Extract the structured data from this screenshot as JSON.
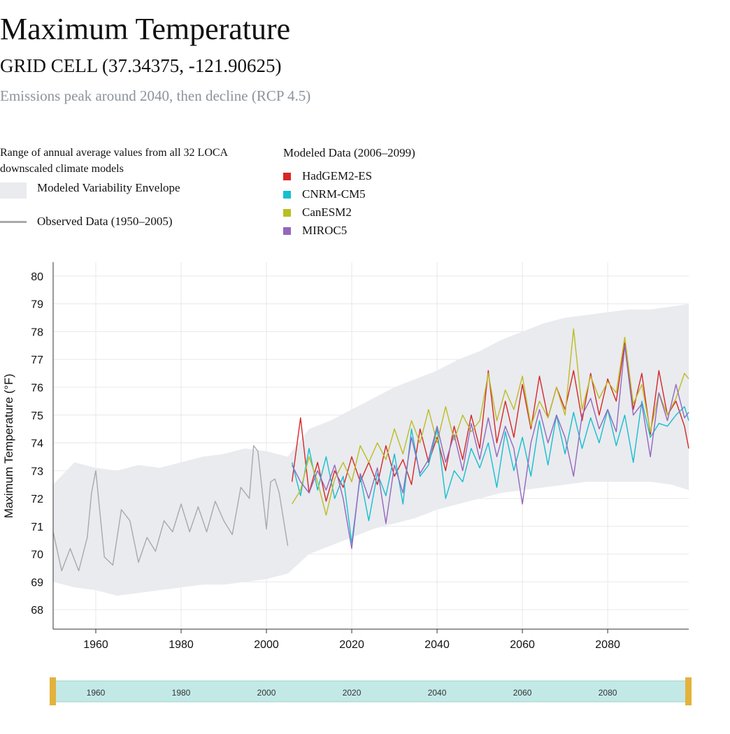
{
  "header": {
    "title": "Maximum Temperature",
    "subtitle": "GRID CELL (37.34375, -121.90625)",
    "scenario": "Emissions peak around 2040, then decline (RCP 4.5)"
  },
  "legend": {
    "envelope_description": "Range of annual average values from all 32 LOCA downscaled climate models",
    "envelope_label": "Modeled Variability Envelope",
    "observed_label": "Observed Data (1950–2005)",
    "modeled_heading": "Modeled Data (2006–2099)",
    "models": [
      {
        "name": "HadGEM2-ES",
        "color": "#d62728"
      },
      {
        "name": "CNRM-CM5",
        "color": "#17becf"
      },
      {
        "name": "CanESM2",
        "color": "#bcbd22"
      },
      {
        "name": "MIROC5",
        "color": "#9467bd"
      }
    ]
  },
  "chart_data": {
    "type": "line",
    "ylabel": "Maximum Temperature (°F)",
    "xlim": [
      1950,
      2099
    ],
    "ylim": [
      67.3,
      80.5
    ],
    "yticks": [
      68,
      69,
      70,
      71,
      72,
      73,
      74,
      75,
      76,
      77,
      78,
      79,
      80
    ],
    "xticks": [
      1960,
      1980,
      2000,
      2020,
      2040,
      2060,
      2080
    ],
    "grid": true,
    "colors": {
      "envelope": "#e9ebef",
      "observed": "#a9a9a9",
      "brush": "#c3e9e7",
      "brush_handle": "#e3b23c"
    },
    "envelope": {
      "x": [
        1950,
        1955,
        1960,
        1965,
        1970,
        1975,
        1980,
        1985,
        1990,
        1995,
        2000,
        2005,
        2010,
        2015,
        2020,
        2025,
        2030,
        2035,
        2040,
        2045,
        2050,
        2055,
        2060,
        2065,
        2070,
        2075,
        2080,
        2085,
        2090,
        2095,
        2099
      ],
      "upper": [
        72.5,
        73.3,
        73.1,
        73.0,
        73.2,
        73.1,
        73.3,
        73.5,
        73.6,
        73.8,
        73.7,
        73.5,
        74.5,
        74.8,
        75.2,
        75.6,
        76.0,
        76.3,
        76.6,
        77.0,
        77.3,
        77.7,
        78.0,
        78.3,
        78.5,
        78.6,
        78.7,
        78.8,
        78.8,
        78.9,
        79.0
      ],
      "lower": [
        69.0,
        68.8,
        68.7,
        68.5,
        68.6,
        68.7,
        68.8,
        68.9,
        68.9,
        69.0,
        69.1,
        69.3,
        70.0,
        70.3,
        70.6,
        70.9,
        71.1,
        71.3,
        71.6,
        71.8,
        72.0,
        72.2,
        72.3,
        72.4,
        72.5,
        72.6,
        72.6,
        72.6,
        72.6,
        72.5,
        72.3
      ]
    },
    "series": [
      {
        "name": "Observed Data (1950–2005)",
        "x": [
          1950,
          1952,
          1954,
          1956,
          1958,
          1959,
          1960,
          1962,
          1964,
          1966,
          1968,
          1970,
          1972,
          1974,
          1976,
          1978,
          1980,
          1982,
          1984,
          1986,
          1988,
          1990,
          1992,
          1994,
          1996,
          1997,
          1998,
          2000,
          2001,
          2002,
          2003,
          2005
        ],
        "values": [
          70.8,
          69.4,
          70.2,
          69.4,
          70.6,
          72.2,
          73.0,
          69.9,
          69.6,
          71.6,
          71.2,
          69.7,
          70.6,
          70.1,
          71.2,
          70.8,
          71.8,
          70.8,
          71.7,
          70.8,
          71.9,
          71.2,
          70.7,
          72.4,
          72.0,
          73.9,
          73.7,
          70.9,
          72.6,
          72.7,
          72.2,
          70.3
        ]
      },
      {
        "name": "HadGEM2-ES",
        "x": [
          2006,
          2008,
          2010,
          2012,
          2014,
          2016,
          2018,
          2020,
          2022,
          2024,
          2026,
          2028,
          2030,
          2032,
          2034,
          2036,
          2038,
          2040,
          2042,
          2044,
          2046,
          2048,
          2050,
          2052,
          2054,
          2056,
          2058,
          2060,
          2062,
          2064,
          2066,
          2068,
          2070,
          2072,
          2074,
          2076,
          2078,
          2080,
          2082,
          2084,
          2086,
          2088,
          2090,
          2092,
          2094,
          2096,
          2098,
          2099
        ],
        "values": [
          72.6,
          74.9,
          72.2,
          73.3,
          71.9,
          73.0,
          72.4,
          73.5,
          72.6,
          73.3,
          72.5,
          73.9,
          72.8,
          73.4,
          72.5,
          74.5,
          73.3,
          74.2,
          73.0,
          74.6,
          73.4,
          75.0,
          73.8,
          76.6,
          74.0,
          75.5,
          74.2,
          76.1,
          74.5,
          76.4,
          74.9,
          76.0,
          75.2,
          76.6,
          74.8,
          76.5,
          75.0,
          76.3,
          75.5,
          77.6,
          75.2,
          76.5,
          74.3,
          76.6,
          75.0,
          75.5,
          74.6,
          73.8
        ]
      },
      {
        "name": "CNRM-CM5",
        "x": [
          2006,
          2008,
          2010,
          2012,
          2014,
          2016,
          2018,
          2020,
          2022,
          2024,
          2026,
          2028,
          2030,
          2032,
          2034,
          2036,
          2038,
          2040,
          2042,
          2044,
          2046,
          2048,
          2050,
          2052,
          2054,
          2056,
          2058,
          2060,
          2062,
          2064,
          2066,
          2068,
          2070,
          2072,
          2074,
          2076,
          2078,
          2080,
          2082,
          2084,
          2086,
          2088,
          2090,
          2092,
          2094,
          2096,
          2098,
          2099
        ],
        "values": [
          73.3,
          72.1,
          73.8,
          72.3,
          73.5,
          72.0,
          72.8,
          70.4,
          72.8,
          71.2,
          72.9,
          72.1,
          73.6,
          71.8,
          74.5,
          72.8,
          73.2,
          74.5,
          72.0,
          73.0,
          72.6,
          73.8,
          73.1,
          74.0,
          72.4,
          74.4,
          73.0,
          74.2,
          72.8,
          74.8,
          73.2,
          75.0,
          73.6,
          75.1,
          73.8,
          74.9,
          74.0,
          75.2,
          73.9,
          75.0,
          73.3,
          75.5,
          74.2,
          74.7,
          74.6,
          75.0,
          75.3,
          74.8
        ]
      },
      {
        "name": "CanESM2",
        "x": [
          2006,
          2008,
          2010,
          2012,
          2014,
          2016,
          2018,
          2020,
          2022,
          2024,
          2026,
          2028,
          2030,
          2032,
          2034,
          2036,
          2038,
          2040,
          2042,
          2044,
          2046,
          2048,
          2050,
          2052,
          2054,
          2056,
          2058,
          2060,
          2062,
          2064,
          2066,
          2068,
          2070,
          2072,
          2074,
          2076,
          2078,
          2080,
          2082,
          2084,
          2086,
          2088,
          2090,
          2092,
          2094,
          2096,
          2098,
          2099
        ],
        "values": [
          71.8,
          72.3,
          73.5,
          72.6,
          71.4,
          72.7,
          73.3,
          72.6,
          73.9,
          73.3,
          74.0,
          73.4,
          74.5,
          73.6,
          74.8,
          74.0,
          75.2,
          74.0,
          75.3,
          74.1,
          75.0,
          74.4,
          74.8,
          76.5,
          74.8,
          75.9,
          75.2,
          76.4,
          74.6,
          75.5,
          74.9,
          76.0,
          75.0,
          78.1,
          75.2,
          76.4,
          75.6,
          76.2,
          75.8,
          77.8,
          75.4,
          76.1,
          74.4,
          75.8,
          75.0,
          75.6,
          76.5,
          76.3
        ]
      },
      {
        "name": "MIROC5",
        "x": [
          2006,
          2008,
          2010,
          2012,
          2014,
          2016,
          2018,
          2020,
          2022,
          2024,
          2026,
          2028,
          2030,
          2032,
          2034,
          2036,
          2038,
          2040,
          2042,
          2044,
          2046,
          2048,
          2050,
          2052,
          2054,
          2056,
          2058,
          2060,
          2062,
          2064,
          2066,
          2068,
          2070,
          2072,
          2074,
          2076,
          2078,
          2080,
          2082,
          2084,
          2086,
          2088,
          2090,
          2092,
          2094,
          2096,
          2098,
          2099
        ],
        "values": [
          73.2,
          72.6,
          72.2,
          73.0,
          72.3,
          73.2,
          72.0,
          70.2,
          72.9,
          72.0,
          73.1,
          71.1,
          73.2,
          72.2,
          74.2,
          72.9,
          73.4,
          74.6,
          73.3,
          74.3,
          73.0,
          74.7,
          73.4,
          74.9,
          73.5,
          74.6,
          73.8,
          71.8,
          74.0,
          75.2,
          74.0,
          75.0,
          74.2,
          72.8,
          75.0,
          75.6,
          74.5,
          75.2,
          74.4,
          77.5,
          75.0,
          75.4,
          73.5,
          75.8,
          74.8,
          76.1,
          74.9,
          75.1
        ]
      }
    ]
  }
}
